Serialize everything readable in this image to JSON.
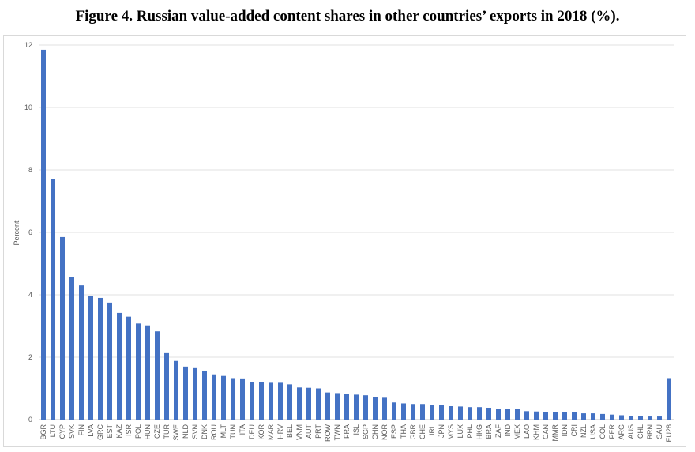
{
  "chart_data": {
    "type": "bar",
    "title": "Figure 4. Russian value-added content shares in other countries’ exports in 2018 (%).",
    "y_label": "Percent",
    "categories": [
      "BGR",
      "LTU",
      "CYP",
      "SVK",
      "FIN",
      "LVA",
      "GRC",
      "EST",
      "KAZ",
      "ISR",
      "POL",
      "HUN",
      "CZE",
      "TUR",
      "SWE",
      "NLD",
      "SVN",
      "DNK",
      "ROU",
      "MLT",
      "TUN",
      "ITA",
      "DEU",
      "KOR",
      "MAR",
      "HRV",
      "BEL",
      "VNM",
      "AUT",
      "PRT",
      "ROW",
      "TWN",
      "FRA",
      "ISL",
      "SGP",
      "CHN",
      "NOR",
      "ESP",
      "THA",
      "GBR",
      "CHE",
      "IRL",
      "JPN",
      "MYS",
      "LUX",
      "PHL",
      "HKG",
      "BRA",
      "ZAF",
      "IND",
      "MEX",
      "LAO",
      "KHM",
      "CAN",
      "MMR",
      "IDN",
      "CRI",
      "NZL",
      "USA",
      "COL",
      "PER",
      "ARG",
      "AUS",
      "CHL",
      "BRN",
      "SAU",
      "EU28"
    ],
    "values": [
      11.85,
      7.7,
      5.85,
      4.57,
      4.3,
      3.97,
      3.9,
      3.75,
      3.42,
      3.3,
      3.08,
      3.02,
      2.83,
      2.13,
      1.88,
      1.7,
      1.65,
      1.57,
      1.45,
      1.4,
      1.33,
      1.32,
      1.2,
      1.2,
      1.18,
      1.18,
      1.13,
      1.03,
      1.02,
      1.0,
      0.87,
      0.85,
      0.83,
      0.8,
      0.78,
      0.73,
      0.7,
      0.55,
      0.52,
      0.5,
      0.5,
      0.48,
      0.47,
      0.43,
      0.42,
      0.4,
      0.4,
      0.38,
      0.35,
      0.35,
      0.33,
      0.27,
      0.26,
      0.25,
      0.25,
      0.24,
      0.24,
      0.2,
      0.2,
      0.18,
      0.16,
      0.14,
      0.12,
      0.12,
      0.1,
      0.1,
      1.33
    ],
    "color": "#4472c4",
    "ylim": [
      0,
      12
    ],
    "yticks": [
      0,
      2,
      4,
      6,
      8,
      10,
      12
    ],
    "grid": true
  }
}
